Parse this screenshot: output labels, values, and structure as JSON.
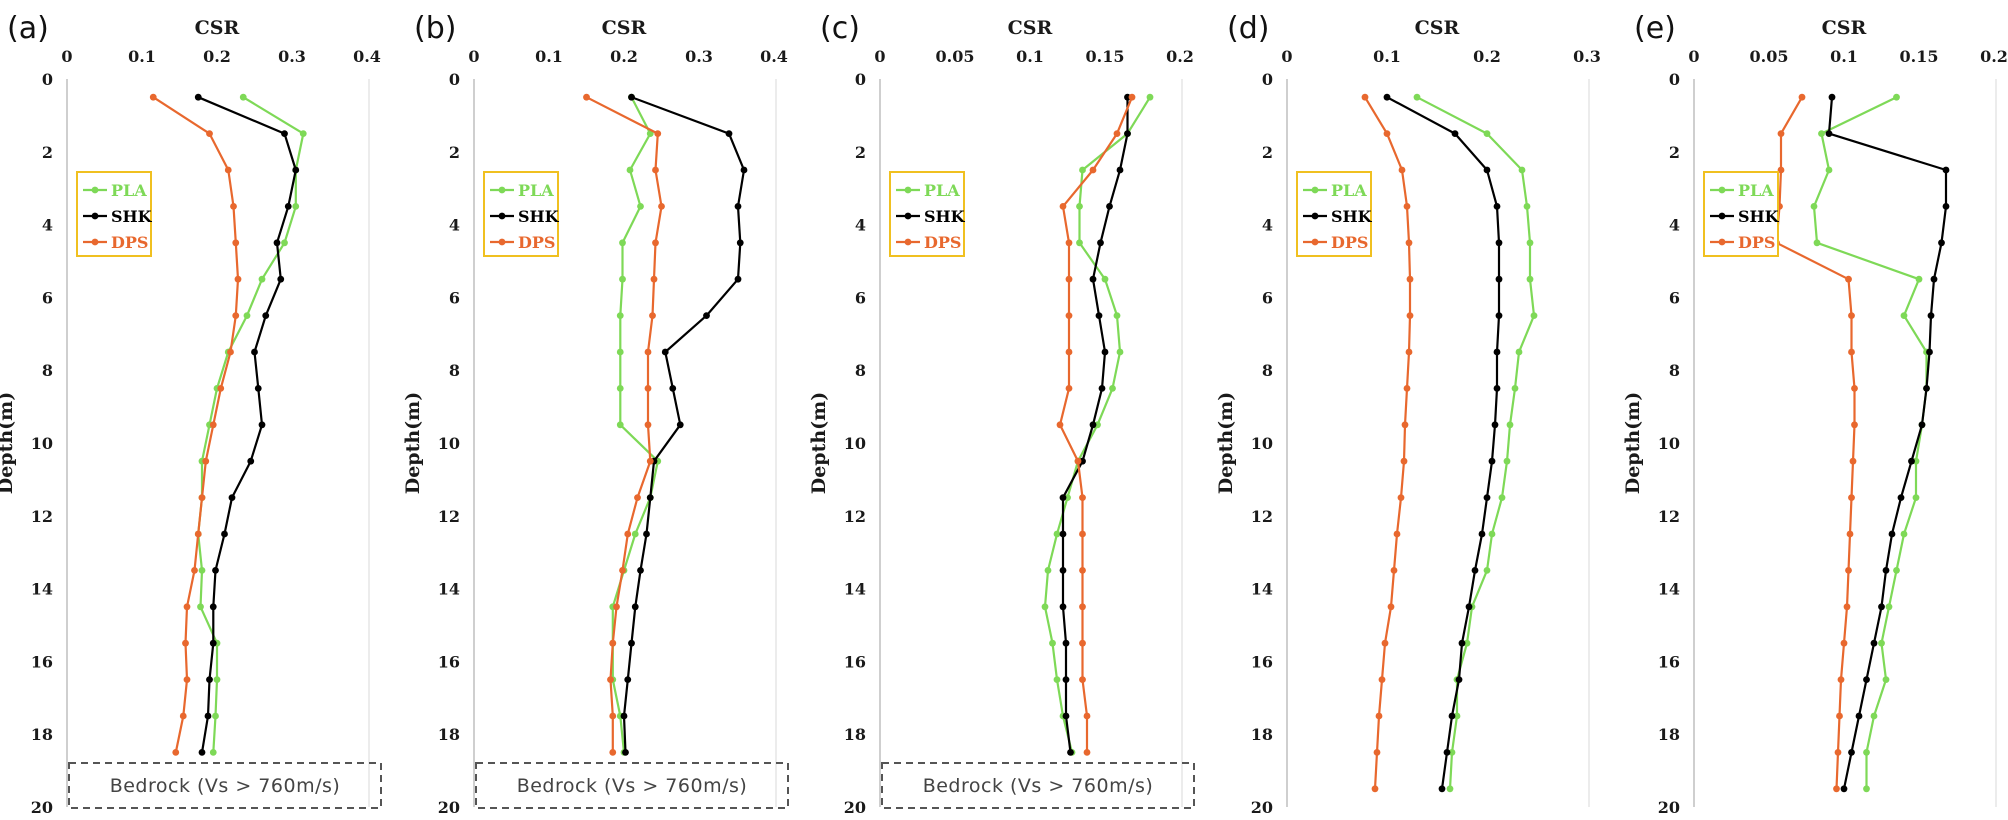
{
  "colors": {
    "PLA": "#7ED957",
    "SHK": "#000000",
    "DPS": "#E8682E",
    "legend_border": "#F0C020",
    "bedrock_border": "#555555"
  },
  "chart_data": [
    {
      "type": "line",
      "label": "(a)",
      "xlabel": "CSR",
      "ylabel": "Depth(m)",
      "xlim": [
        0,
        0.4
      ],
      "xticks": [
        0,
        0.1,
        0.2,
        0.3,
        0.4
      ],
      "xtick_labels": [
        "0",
        "0.1",
        "0.2",
        "0.3",
        "0.4"
      ],
      "ylim": [
        0,
        20
      ],
      "yticks": [
        0,
        2,
        4,
        6,
        8,
        10,
        12,
        14,
        16,
        18,
        20
      ],
      "ytick_labels": [
        "0",
        "2",
        "4",
        "6",
        "8",
        "10",
        "12",
        "14",
        "16",
        "18",
        "20"
      ],
      "legend": [
        "PLA",
        "SHK",
        "DPS"
      ],
      "legend_position": "top-left",
      "bedrock_label": "Bedrock (Vs > 760m/s)",
      "series": [
        {
          "name": "PLA",
          "depth": [
            0.5,
            1.5,
            2.5,
            3.5,
            4.5,
            5.5,
            6.5,
            7.5,
            8.5,
            9.5,
            10.5,
            11.5,
            12.5,
            13.5,
            14.5,
            15.5,
            16.5,
            17.5,
            18.5
          ],
          "csr": [
            0.235,
            0.315,
            0.305,
            0.305,
            0.29,
            0.26,
            0.24,
            0.215,
            0.2,
            0.19,
            0.18,
            0.18,
            0.175,
            0.18,
            0.178,
            0.2,
            0.2,
            0.198,
            0.195
          ]
        },
        {
          "name": "SHK",
          "depth": [
            0.5,
            1.5,
            2.5,
            3.5,
            4.5,
            5.5,
            6.5,
            7.5,
            8.5,
            9.5,
            10.5,
            11.5,
            12.5,
            13.5,
            14.5,
            15.5,
            16.5,
            17.5,
            18.5
          ],
          "csr": [
            0.175,
            0.29,
            0.305,
            0.295,
            0.28,
            0.285,
            0.265,
            0.25,
            0.255,
            0.26,
            0.245,
            0.22,
            0.21,
            0.198,
            0.195,
            0.195,
            0.19,
            0.188,
            0.18
          ]
        },
        {
          "name": "DPS",
          "depth": [
            0.5,
            1.5,
            2.5,
            3.5,
            4.5,
            5.5,
            6.5,
            7.5,
            8.5,
            9.5,
            10.5,
            11.5,
            12.5,
            13.5,
            14.5,
            15.5,
            16.5,
            17.5,
            18.5
          ],
          "csr": [
            0.115,
            0.19,
            0.215,
            0.222,
            0.225,
            0.228,
            0.225,
            0.218,
            0.205,
            0.195,
            0.185,
            0.18,
            0.175,
            0.17,
            0.16,
            0.158,
            0.16,
            0.155,
            0.145
          ]
        }
      ]
    },
    {
      "type": "line",
      "label": "(b)",
      "xlabel": "CSR",
      "ylabel": "Depth(m)",
      "xlim": [
        0,
        0.4
      ],
      "xticks": [
        0,
        0.1,
        0.2,
        0.3,
        0.4
      ],
      "xtick_labels": [
        "0",
        "0.1",
        "0.2",
        "0.3",
        "0.4"
      ],
      "ylim": [
        0,
        20
      ],
      "yticks": [
        0,
        2,
        4,
        6,
        8,
        10,
        12,
        14,
        16,
        18,
        20
      ],
      "ytick_labels": [
        "0",
        "2",
        "4",
        "6",
        "8",
        "10",
        "12",
        "14",
        "16",
        "18",
        "20"
      ],
      "legend": [
        "PLA",
        "SHK",
        "DPS"
      ],
      "legend_position": "top-left",
      "bedrock_label": "Bedrock (Vs > 760m/s)",
      "series": [
        {
          "name": "PLA",
          "depth": [
            0.5,
            1.5,
            2.5,
            3.5,
            4.5,
            5.5,
            6.5,
            7.5,
            8.5,
            9.5,
            10.5,
            11.5,
            12.5,
            13.5,
            14.5,
            15.5,
            16.5,
            17.5,
            18.5
          ],
          "csr": [
            0.21,
            0.235,
            0.208,
            0.222,
            0.198,
            0.198,
            0.195,
            0.195,
            0.195,
            0.195,
            0.245,
            0.235,
            0.215,
            0.2,
            0.185,
            0.185,
            0.185,
            0.195,
            0.2
          ]
        },
        {
          "name": "SHK",
          "depth": [
            0.5,
            1.5,
            2.5,
            3.5,
            4.5,
            5.5,
            6.5,
            7.5,
            8.5,
            9.5,
            10.5,
            11.5,
            12.5,
            13.5,
            14.5,
            15.5,
            16.5,
            17.5,
            18.5
          ],
          "csr": [
            0.21,
            0.34,
            0.36,
            0.352,
            0.355,
            0.352,
            0.31,
            0.255,
            0.265,
            0.275,
            0.24,
            0.235,
            0.23,
            0.222,
            0.215,
            0.21,
            0.205,
            0.2,
            0.202
          ]
        },
        {
          "name": "DPS",
          "depth": [
            0.5,
            1.5,
            2.5,
            3.5,
            4.5,
            5.5,
            6.5,
            7.5,
            8.5,
            9.5,
            10.5,
            11.5,
            12.5,
            13.5,
            14.5,
            15.5,
            16.5,
            17.5,
            18.5
          ],
          "csr": [
            0.15,
            0.245,
            0.242,
            0.25,
            0.242,
            0.24,
            0.238,
            0.232,
            0.232,
            0.232,
            0.235,
            0.218,
            0.205,
            0.198,
            0.19,
            0.185,
            0.182,
            0.185,
            0.185
          ]
        }
      ]
    },
    {
      "type": "line",
      "label": "(c)",
      "xlabel": "CSR",
      "ylabel": "Depth(m)",
      "xlim": [
        0,
        0.2
      ],
      "xticks": [
        0,
        0.05,
        0.1,
        0.15,
        0.2
      ],
      "xtick_labels": [
        "0",
        "0.05",
        "0.1",
        "0.15",
        "0.2"
      ],
      "ylim": [
        0,
        20
      ],
      "yticks": [
        0,
        2,
        4,
        6,
        8,
        10,
        12,
        14,
        16,
        18,
        20
      ],
      "ytick_labels": [
        "0",
        "2",
        "4",
        "6",
        "8",
        "10",
        "12",
        "14",
        "16",
        "18",
        "20"
      ],
      "legend": [
        "PLA",
        "SHK",
        "DPS"
      ],
      "legend_position": "top-left",
      "bedrock_label": "Bedrock (Vs > 760m/s)",
      "series": [
        {
          "name": "PLA",
          "depth": [
            0.5,
            1.5,
            2.5,
            3.5,
            4.5,
            5.5,
            6.5,
            7.5,
            8.5,
            9.5,
            10.5,
            11.5,
            12.5,
            13.5,
            14.5,
            15.5,
            16.5,
            17.5,
            18.5
          ],
          "csr": [
            0.18,
            0.165,
            0.135,
            0.133,
            0.133,
            0.15,
            0.158,
            0.16,
            0.155,
            0.145,
            0.132,
            0.125,
            0.118,
            0.112,
            0.11,
            0.115,
            0.118,
            0.122,
            0.128
          ]
        },
        {
          "name": "SHK",
          "depth": [
            0.5,
            1.5,
            2.5,
            3.5,
            4.5,
            5.5,
            6.5,
            7.5,
            8.5,
            9.5,
            10.5,
            11.5,
            12.5,
            13.5,
            14.5,
            15.5,
            16.5,
            17.5,
            18.5
          ],
          "csr": [
            0.165,
            0.165,
            0.16,
            0.153,
            0.147,
            0.142,
            0.146,
            0.15,
            0.148,
            0.142,
            0.135,
            0.122,
            0.122,
            0.122,
            0.122,
            0.124,
            0.124,
            0.124,
            0.127
          ]
        },
        {
          "name": "DPS",
          "depth": [
            0.5,
            1.5,
            2.5,
            3.5,
            4.5,
            5.5,
            6.5,
            7.5,
            8.5,
            9.5,
            10.5,
            11.5,
            12.5,
            13.5,
            14.5,
            15.5,
            16.5,
            17.5,
            18.5
          ],
          "csr": [
            0.168,
            0.158,
            0.142,
            0.122,
            0.126,
            0.126,
            0.126,
            0.126,
            0.126,
            0.12,
            0.132,
            0.135,
            0.135,
            0.135,
            0.135,
            0.135,
            0.135,
            0.138,
            0.138
          ]
        }
      ]
    },
    {
      "type": "line",
      "label": "(d)",
      "xlabel": "CSR",
      "ylabel": "Depth(m)",
      "xlim": [
        0,
        0.3
      ],
      "xticks": [
        0,
        0.1,
        0.2,
        0.3
      ],
      "xtick_labels": [
        "0",
        "0.1",
        "0.2",
        "0.3"
      ],
      "ylim": [
        0,
        20
      ],
      "yticks": [
        0,
        2,
        4,
        6,
        8,
        10,
        12,
        14,
        16,
        18,
        20
      ],
      "ytick_labels": [
        "0",
        "2",
        "4",
        "6",
        "8",
        "10",
        "12",
        "14",
        "16",
        "18",
        "20"
      ],
      "legend": [
        "PLA",
        "SHK",
        "DPS"
      ],
      "legend_position": "top-left",
      "bedrock_label": "",
      "series": [
        {
          "name": "PLA",
          "depth": [
            0.5,
            1.5,
            2.5,
            3.5,
            4.5,
            5.5,
            6.5,
            7.5,
            8.5,
            9.5,
            10.5,
            11.5,
            12.5,
            13.5,
            14.5,
            15.5,
            16.5,
            17.5,
            18.5,
            19.5
          ],
          "csr": [
            0.13,
            0.2,
            0.235,
            0.24,
            0.243,
            0.243,
            0.247,
            0.232,
            0.228,
            0.223,
            0.22,
            0.215,
            0.205,
            0.2,
            0.185,
            0.18,
            0.17,
            0.17,
            0.165,
            0.163
          ]
        },
        {
          "name": "SHK",
          "depth": [
            0.5,
            1.5,
            2.5,
            3.5,
            4.5,
            5.5,
            6.5,
            7.5,
            8.5,
            9.5,
            10.5,
            11.5,
            12.5,
            13.5,
            14.5,
            15.5,
            16.5,
            17.5,
            18.5,
            19.5
          ],
          "csr": [
            0.1,
            0.168,
            0.2,
            0.21,
            0.212,
            0.212,
            0.212,
            0.21,
            0.21,
            0.208,
            0.205,
            0.2,
            0.195,
            0.188,
            0.182,
            0.175,
            0.172,
            0.165,
            0.16,
            0.155
          ]
        },
        {
          "name": "DPS",
          "depth": [
            0.5,
            1.5,
            2.5,
            3.5,
            4.5,
            5.5,
            6.5,
            7.5,
            8.5,
            9.5,
            10.5,
            11.5,
            12.5,
            13.5,
            14.5,
            15.5,
            16.5,
            17.5,
            18.5,
            19.5
          ],
          "csr": [
            0.078,
            0.1,
            0.115,
            0.12,
            0.122,
            0.123,
            0.123,
            0.122,
            0.12,
            0.118,
            0.117,
            0.114,
            0.11,
            0.107,
            0.104,
            0.098,
            0.095,
            0.092,
            0.09,
            0.088
          ]
        }
      ]
    },
    {
      "type": "line",
      "label": "(e)",
      "xlabel": "CSR",
      "ylabel": "Depth(m)",
      "xlim": [
        0,
        0.2
      ],
      "xticks": [
        0,
        0.05,
        0.1,
        0.15,
        0.2
      ],
      "xtick_labels": [
        "0",
        "0.05",
        "0.1",
        "0.15",
        "0.2"
      ],
      "ylim": [
        0,
        20
      ],
      "yticks": [
        0,
        2,
        4,
        6,
        8,
        10,
        12,
        14,
        16,
        18,
        20
      ],
      "ytick_labels": [
        "0",
        "2",
        "4",
        "6",
        "8",
        "10",
        "12",
        "14",
        "16",
        "18",
        "20"
      ],
      "legend": [
        "PLA",
        "SHK",
        "DPS"
      ],
      "legend_position": "top-left",
      "bedrock_label": "",
      "series": [
        {
          "name": "PLA",
          "depth": [
            0.5,
            1.5,
            2.5,
            3.5,
            4.5,
            5.5,
            6.5,
            7.5,
            8.5,
            9.5,
            10.5,
            11.5,
            12.5,
            13.5,
            14.5,
            15.5,
            16.5,
            17.5,
            18.5,
            19.5
          ],
          "csr": [
            0.135,
            0.085,
            0.09,
            0.08,
            0.082,
            0.15,
            0.14,
            0.155,
            0.155,
            0.152,
            0.148,
            0.148,
            0.14,
            0.135,
            0.13,
            0.125,
            0.128,
            0.12,
            0.115,
            0.115
          ]
        },
        {
          "name": "SHK",
          "depth": [
            0.5,
            1.5,
            2.5,
            3.5,
            4.5,
            5.5,
            6.5,
            7.5,
            8.5,
            9.5,
            10.5,
            11.5,
            12.5,
            13.5,
            14.5,
            15.5,
            16.5,
            17.5,
            18.5,
            19.5
          ],
          "csr": [
            0.092,
            0.09,
            0.168,
            0.168,
            0.165,
            0.16,
            0.158,
            0.157,
            0.155,
            0.152,
            0.145,
            0.138,
            0.132,
            0.128,
            0.125,
            0.12,
            0.115,
            0.11,
            0.105,
            0.1
          ]
        },
        {
          "name": "DPS",
          "depth": [
            0.5,
            1.5,
            2.5,
            3.5,
            4.5,
            5.5,
            6.5,
            7.5,
            8.5,
            9.5,
            10.5,
            11.5,
            12.5,
            13.5,
            14.5,
            15.5,
            16.5,
            17.5,
            18.5,
            19.5
          ],
          "csr": [
            0.072,
            0.058,
            0.058,
            0.057,
            0.055,
            0.103,
            0.105,
            0.105,
            0.107,
            0.107,
            0.106,
            0.105,
            0.104,
            0.103,
            0.102,
            0.1,
            0.098,
            0.097,
            0.096,
            0.095
          ]
        }
      ]
    }
  ]
}
